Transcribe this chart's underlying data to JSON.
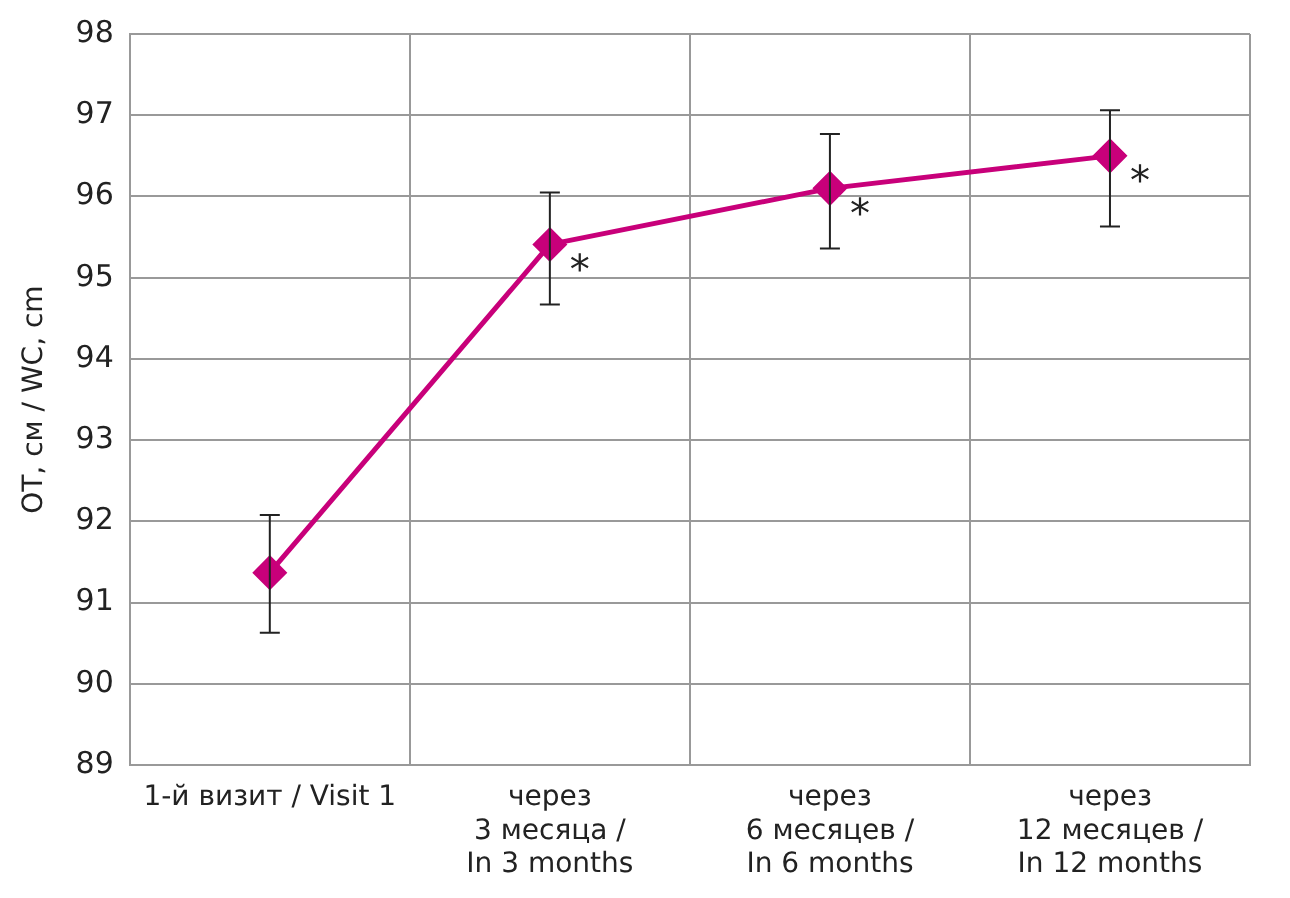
{
  "chart_data": {
    "type": "line",
    "ylabel": "ОТ, см / WC, cm",
    "categories": [
      "1-й визит / Visit 1",
      "через\n3 месяца /\nIn 3 months",
      "через\n6 месяцев /\nIn 6 months",
      "через\n12 месяцев /\nIn 12 months"
    ],
    "series": [
      {
        "color": "#c8007a",
        "values": [
          91.37,
          95.41,
          96.1,
          96.5
        ],
        "errors": [
          [
            90.63,
            92.08
          ],
          [
            94.67,
            96.05
          ],
          [
            95.36,
            96.77
          ],
          [
            95.63,
            97.06
          ]
        ]
      }
    ],
    "ylim": [
      89,
      98
    ],
    "yticks": [
      89,
      90,
      91,
      92,
      93,
      94,
      95,
      96,
      97,
      98
    ],
    "grid": true,
    "marker": "diamond",
    "line_style": "solid",
    "annotations": [
      {
        "text": "*",
        "x": "через\n3 месяца /\nIn 3 months",
        "y": 95.41
      },
      {
        "text": "*",
        "x": "через\n6 месяцев /\nIn 6 months",
        "y": 96.1
      },
      {
        "text": "*",
        "x": "через\n12 месяцев /\nIn 12 months",
        "y": 96.5
      }
    ]
  }
}
